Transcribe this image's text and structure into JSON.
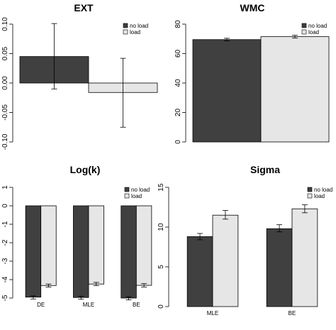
{
  "figure": {
    "colors": {
      "no_load": "#404040",
      "load": "#e6e6e6",
      "axis": "#000000"
    }
  },
  "chart_data": [
    {
      "type": "bar",
      "title": "EXT",
      "xlabel": "",
      "ylabel": "",
      "categories": [
        ""
      ],
      "series": [
        {
          "name": "no load",
          "values": [
            0.045
          ],
          "error_low": [
            -0.01
          ],
          "error_high": [
            0.101
          ]
        },
        {
          "name": "load",
          "values": [
            -0.016
          ],
          "error_low": [
            -0.075
          ],
          "error_high": [
            0.042
          ]
        }
      ],
      "ylim": [
        -0.1,
        0.1
      ],
      "yticks": [
        "-0.10",
        "-0.05",
        "0.00",
        "0.05",
        "0.10"
      ],
      "legend_position": "top-right",
      "grid": false
    },
    {
      "type": "bar",
      "title": "WMC",
      "xlabel": "",
      "ylabel": "",
      "categories": [
        ""
      ],
      "series": [
        {
          "name": "no load",
          "values": [
            69.5
          ],
          "error_low": [
            68.6
          ],
          "error_high": [
            70.4
          ]
        },
        {
          "name": "load",
          "values": [
            71.5
          ],
          "error_low": [
            70.5
          ],
          "error_high": [
            72.4
          ]
        }
      ],
      "ylim": [
        0,
        80
      ],
      "yticks": [
        "0",
        "20",
        "40",
        "60",
        "80"
      ],
      "legend_position": "top-right",
      "grid": false
    },
    {
      "type": "bar",
      "title": "Log(k)",
      "xlabel": "",
      "ylabel": "",
      "categories": [
        "DE",
        "MLE",
        "BE"
      ],
      "series": [
        {
          "name": "no load",
          "values": [
            -4.95,
            -4.97,
            -5.0
          ],
          "error_low": [
            -5.05,
            -5.07,
            -5.1
          ],
          "error_high": [
            -4.88,
            -4.9,
            -4.93
          ]
        },
        {
          "name": "load",
          "values": [
            -4.32,
            -4.24,
            -4.31
          ],
          "error_low": [
            -4.4,
            -4.33,
            -4.4
          ],
          "error_high": [
            -4.24,
            -4.15,
            -4.22
          ]
        }
      ],
      "ylim": [
        -5,
        1
      ],
      "yticks": [
        "-5",
        "-4",
        "-3",
        "-2",
        "-1",
        "0",
        "1"
      ],
      "legend_position": "top-right",
      "grid": false
    },
    {
      "type": "bar",
      "title": "Sigma",
      "xlabel": "",
      "ylabel": "",
      "categories": [
        "MLE",
        "BE"
      ],
      "series": [
        {
          "name": "no load",
          "values": [
            8.8,
            9.8
          ],
          "error_low": [
            8.4,
            9.4
          ],
          "error_high": [
            9.2,
            10.3
          ]
        },
        {
          "name": "load",
          "values": [
            11.5,
            12.3
          ],
          "error_low": [
            11.0,
            11.8
          ],
          "error_high": [
            12.1,
            12.8
          ]
        }
      ],
      "ylim": [
        0,
        15
      ],
      "yticks": [
        "0",
        "5",
        "10",
        "15"
      ],
      "legend_position": "top-right",
      "grid": false
    }
  ]
}
